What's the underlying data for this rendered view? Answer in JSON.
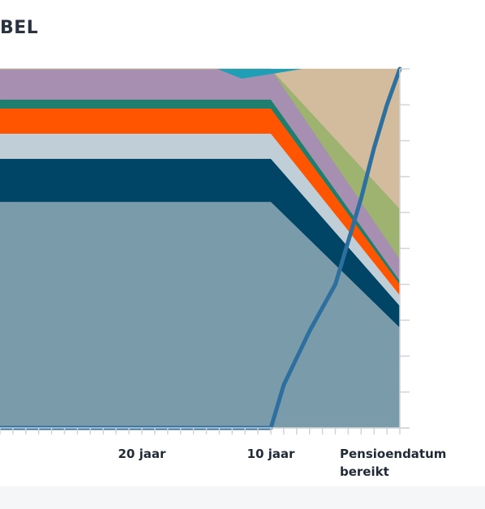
{
  "title": "BEL",
  "chart_data": {
    "type": "area",
    "x_tick_labels": [
      "20 jaar",
      "10 jaar",
      "Pensioendatum bereikt"
    ],
    "xlim": [
      -31,
      0
    ],
    "ylim": [
      0,
      100
    ],
    "x_label_positions": [
      -20,
      -10,
      0
    ],
    "x": [
      -31,
      -10,
      0
    ],
    "series": [
      {
        "color": "#7a9ba9",
        "values": [
          63,
          63,
          28
        ]
      },
      {
        "color": "#004466",
        "values": [
          12,
          12,
          6
        ]
      },
      {
        "color": "#c0ced7",
        "values": [
          7,
          7,
          3
        ]
      },
      {
        "color": "#ff5500",
        "values": [
          7,
          7,
          3
        ]
      },
      {
        "color": "#1e7f6f",
        "values": [
          2.5,
          2.5,
          1
        ]
      },
      {
        "color": "#a68fb0",
        "values": [
          8.5,
          8.5,
          6
        ]
      },
      {
        "color": "#9db36f",
        "values": [
          0,
          0,
          14
        ]
      },
      {
        "color": "#d3bb9d",
        "values": [
          0,
          0,
          39
        ]
      }
    ],
    "line": {
      "color": "#2d6f9e",
      "points": [
        [
          -31,
          0
        ],
        [
          -10,
          0
        ],
        [
          -9,
          12
        ],
        [
          -7,
          27
        ],
        [
          -5,
          40
        ],
        [
          -3,
          64
        ],
        [
          -2,
          78
        ],
        [
          -1,
          90
        ],
        [
          0,
          100
        ]
      ]
    }
  }
}
